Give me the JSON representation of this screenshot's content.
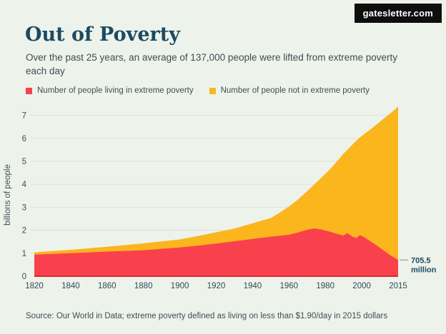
{
  "badge": {
    "label": "gatesletter.com"
  },
  "header": {
    "title": "Out of Poverty",
    "subtitle": "Over the past 25 years, an average of 137,000 people were lifted from extreme poverty each day"
  },
  "legend": [
    {
      "label": "Number of people living in extreme poverty",
      "color": "#f9414d"
    },
    {
      "label": "Number of people not in extreme poverty",
      "color": "#fbb51d"
    }
  ],
  "chart_data": {
    "type": "area",
    "stacked": true,
    "title": "Out of Poverty",
    "ylabel": "billions of people",
    "xlabel": "",
    "grid": true,
    "legend_position": "top",
    "ylim": [
      0,
      7.4
    ],
    "yticks": [
      0,
      1,
      2,
      3,
      4,
      5,
      6,
      7
    ],
    "xticks": [
      1820,
      1840,
      1860,
      1880,
      1900,
      1920,
      1940,
      1960,
      1980,
      2000,
      2015
    ],
    "x": [
      1820,
      1840,
      1860,
      1880,
      1900,
      1910,
      1920,
      1930,
      1940,
      1950,
      1955,
      1960,
      1965,
      1970,
      1974,
      1978,
      1981,
      1984,
      1987,
      1990,
      1992,
      1995,
      1997,
      1999,
      2001,
      2003,
      2006,
      2009,
      2012,
      2015
    ],
    "series": [
      {
        "name": "Number of people living in extreme poverty",
        "color": "#f9414d",
        "values": [
          0.94,
          1.0,
          1.07,
          1.13,
          1.25,
          1.33,
          1.42,
          1.52,
          1.62,
          1.72,
          1.76,
          1.8,
          1.9,
          2.02,
          2.08,
          2.03,
          1.97,
          1.9,
          1.83,
          1.77,
          1.88,
          1.72,
          1.66,
          1.79,
          1.7,
          1.56,
          1.35,
          1.12,
          0.9,
          0.7055
        ]
      },
      {
        "name": "Number of people not in extreme poverty",
        "color": "#fbb51d",
        "values": [
          0.1,
          0.15,
          0.21,
          0.3,
          0.35,
          0.42,
          0.49,
          0.55,
          0.68,
          0.81,
          1.01,
          1.23,
          1.44,
          1.68,
          1.92,
          2.27,
          2.56,
          2.88,
          3.22,
          3.56,
          3.61,
          4.02,
          4.23,
          4.25,
          4.49,
          4.78,
          5.24,
          5.73,
          6.2,
          6.6745
        ]
      }
    ],
    "annotation": {
      "line1": "705.5",
      "line2": "million",
      "x": 2015,
      "y": 0.7055
    }
  },
  "source": "Source: Our World in Data; extreme poverty defined as living on less than $1.90/day in 2015 dollars",
  "colors": {
    "background": "#edf3ea",
    "title": "#1c4a63",
    "text": "#3d4d56",
    "red": "#f9414d",
    "yellow": "#fbb51d",
    "grid": "#dbe1da",
    "baseline": "#d62b36",
    "badge_bg": "#0e0e0e",
    "badge_text": "#ffffff",
    "annotation_line": "#9aa5a0"
  }
}
